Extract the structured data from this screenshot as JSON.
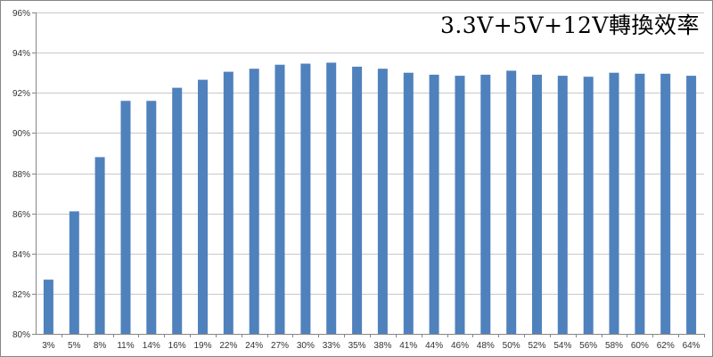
{
  "chart_data": {
    "type": "bar",
    "title": "3.3V+5V+12V轉換效率",
    "xlabel": "",
    "ylabel": "",
    "ylim": [
      80,
      96
    ],
    "y_ticks": [
      "80%",
      "82%",
      "84%",
      "86%",
      "88%",
      "90%",
      "92%",
      "94%",
      "96%"
    ],
    "grid": true,
    "legend": "none",
    "bar_color": "#4f81bd",
    "grid_color": "#c8c8c8",
    "categories": [
      "3%",
      "5%",
      "8%",
      "11%",
      "14%",
      "16%",
      "19%",
      "22%",
      "24%",
      "27%",
      "30%",
      "33%",
      "35%",
      "38%",
      "41%",
      "44%",
      "46%",
      "48%",
      "50%",
      "52%",
      "54%",
      "56%",
      "58%",
      "60%",
      "62%",
      "64%"
    ],
    "values": [
      82.7,
      86.1,
      88.8,
      91.6,
      91.6,
      92.25,
      92.65,
      93.05,
      93.2,
      93.4,
      93.45,
      93.5,
      93.3,
      93.2,
      93.0,
      92.9,
      92.85,
      92.9,
      93.1,
      92.9,
      92.85,
      92.8,
      93.0,
      92.95,
      92.95,
      92.85
    ]
  }
}
